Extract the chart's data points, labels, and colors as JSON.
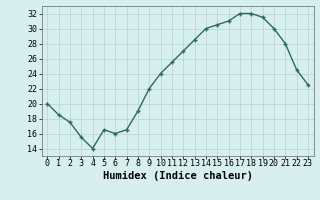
{
  "x": [
    0,
    1,
    2,
    3,
    4,
    5,
    6,
    7,
    8,
    9,
    10,
    11,
    12,
    13,
    14,
    15,
    16,
    17,
    18,
    19,
    20,
    21,
    22,
    23
  ],
  "y": [
    20,
    18.5,
    17.5,
    15.5,
    14,
    16.5,
    16,
    16.5,
    19,
    22,
    24,
    25.5,
    27,
    28.5,
    30,
    30.5,
    31,
    32,
    32,
    31.5,
    30,
    28,
    24.5,
    22.5
  ],
  "line_color": "#2e6b5e",
  "marker": "+",
  "marker_size": 3,
  "marker_linewidth": 1.0,
  "line_width": 1.0,
  "background_color": "#d8efef",
  "grid_color": "#b8d8d8",
  "xlabel": "Humidex (Indice chaleur)",
  "xlabel_fontsize": 7.5,
  "xlim": [
    -0.5,
    23.5
  ],
  "ylim": [
    13,
    33
  ],
  "yticks": [
    14,
    16,
    18,
    20,
    22,
    24,
    26,
    28,
    30,
    32
  ],
  "xticks": [
    0,
    1,
    2,
    3,
    4,
    5,
    6,
    7,
    8,
    9,
    10,
    11,
    12,
    13,
    14,
    15,
    16,
    17,
    18,
    19,
    20,
    21,
    22,
    23
  ],
  "tick_fontsize": 6.0
}
